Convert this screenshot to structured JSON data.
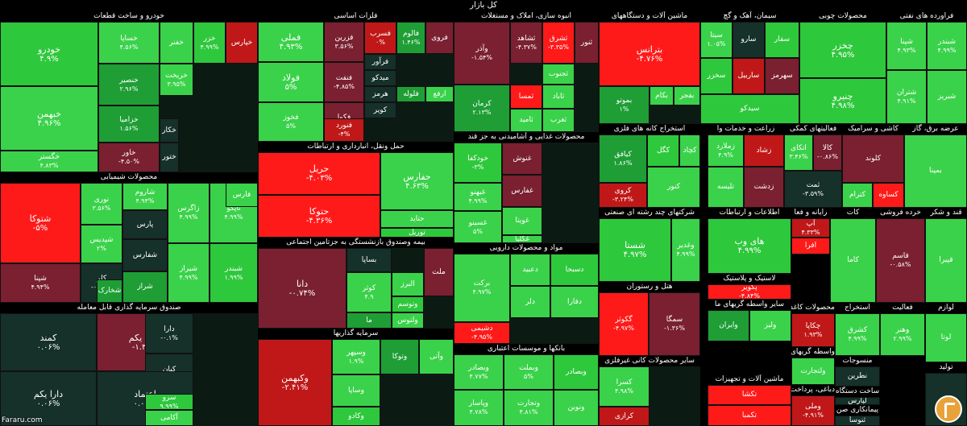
{
  "header": {
    "title": "کل بازار"
  },
  "watermark": "Fararu.com",
  "colors": {
    "strong_up": "#2ec83c",
    "up": "#3ad24a",
    "mild_up": "#1e9e35",
    "flat": "#16302a",
    "mild_down": "#7a2030",
    "down": "#c01818",
    "strong_down": "#ff1a1a",
    "text": "#ffffff",
    "background": "#000000"
  },
  "chart_data": {
    "type": "treemap",
    "title": "کل بازار",
    "sectors": [
      {
        "name": "خودرو و ساخت قطعات",
        "tiles": [
          {
            "symbol": "خودرو",
            "change": "۴.۹%"
          },
          {
            "symbol": "خساپا",
            "change": "۴.۵۶%"
          },
          {
            "symbol": "خبهمن",
            "change": "۴.۹۶%"
          },
          {
            "symbol": "خنصیر",
            "change": "۲.۹۶%"
          },
          {
            "symbol": "خزامیا",
            "change": "۱.۵۶%"
          },
          {
            "symbol": "خگستر",
            "change": "۴.۸۳%"
          },
          {
            "symbol": "خاور",
            "change": "-۴.۵۰%"
          },
          {
            "symbol": "خریخت",
            "change": "۳.۹۵%"
          },
          {
            "symbol": "خکار"
          },
          {
            "symbol": "ختور"
          },
          {
            "symbol": "خزر",
            "change": "۴.۹۹%"
          },
          {
            "symbol": "خپارس"
          },
          {
            "symbol": "خفنر"
          }
        ]
      },
      {
        "name": "محصولات شیمیایی",
        "tiles": [
          {
            "symbol": "شتوکا",
            "change": "-۵%"
          },
          {
            "symbol": "کلر",
            "change": "-۰.۳۳%"
          },
          {
            "symbol": "شپنا",
            "change": "۴.۹۴%"
          },
          {
            "symbol": "نوری",
            "change": "۳.۵۶%"
          },
          {
            "symbol": "شپدیس",
            "change": "۲%"
          },
          {
            "symbol": "شاروم",
            "change": "۴.۹۴%"
          },
          {
            "symbol": "پارس"
          },
          {
            "symbol": "شفارس"
          },
          {
            "symbol": "شراز"
          },
          {
            "symbol": "زاگرس",
            "change": "۴.۹۹%"
          },
          {
            "symbol": "شیراز",
            "change": "۴.۹۹%"
          },
          {
            "symbol": "تاپکو",
            "change": "۴.۹۹%"
          },
          {
            "symbol": "شبندر",
            "change": "۱.۹۹%"
          },
          {
            "symbol": "فارس"
          },
          {
            "symbol": "شخارک"
          }
        ]
      },
      {
        "name": "صندوق سرمایه گذاری قابل معامله",
        "tiles": [
          {
            "symbol": "کمند",
            "change": "۰.۰۶%"
          },
          {
            "symbol": "امین یکم",
            "change": "-۱.۳۵%"
          },
          {
            "symbol": "دارا",
            "change": "-۰.۱%"
          },
          {
            "symbol": "کیان",
            "change": "۰.۰۶%"
          },
          {
            "symbol": "اعتماد",
            "change": "۰.۰۳%"
          },
          {
            "symbol": "دارا یکم",
            "change": "۰.۰۶%"
          },
          {
            "symbol": "سرو",
            "change": "۹.۹۹%"
          },
          {
            "symbol": "آکامی"
          }
        ]
      },
      {
        "name": "فلزات اساسی",
        "tiles": [
          {
            "symbol": "فملی",
            "change": "۴.۹۳%"
          },
          {
            "symbol": "فولاد",
            "change": "۵%"
          },
          {
            "symbol": "فخوز",
            "change": "۵%"
          },
          {
            "symbol": "فزرین",
            "change": "۳.۵۶%"
          },
          {
            "symbol": "فنفت",
            "change": "-۴.۸۵%"
          },
          {
            "symbol": "فکوا",
            "change": "-۱.۴۶%"
          },
          {
            "symbol": "فنورد",
            "change": "-۴%"
          },
          {
            "symbol": "فسرب",
            "change": "۰%"
          },
          {
            "symbol": "فالوم",
            "change": "۱.۴۶%"
          },
          {
            "symbol": "فروی"
          },
          {
            "symbol": "فرآور"
          },
          {
            "symbol": "میدکو"
          },
          {
            "symbol": "هرمز"
          },
          {
            "symbol": "کویر"
          },
          {
            "symbol": "فلوله"
          },
          {
            "symbol": "ارفع"
          }
        ]
      },
      {
        "name": "حمل ونقل، انبارداری و ارتباطات",
        "tiles": [
          {
            "symbol": "حریل",
            "change": "-۴.۰۳%"
          },
          {
            "symbol": "حتوکا",
            "change": "-۴.۳۶%"
          },
          {
            "symbol": "حفارس",
            "change": "۴.۶۳%"
          },
          {
            "symbol": "حتاید"
          },
          {
            "symbol": "توریل"
          }
        ]
      },
      {
        "name": "بیمه وصندوق بازنشستگی به جزتامین اجتماعی",
        "tiles": [
          {
            "symbol": "دانا",
            "change": "-۰.۷۴%"
          },
          {
            "symbol": "کوثر",
            "change": "۴.۹"
          },
          {
            "symbol": "البرز"
          },
          {
            "symbol": "ملت"
          },
          {
            "symbol": "وتوسم"
          },
          {
            "symbol": "ولتوس"
          },
          {
            "symbol": "ما"
          },
          {
            "symbol": "بساپا"
          }
        ]
      },
      {
        "name": "سرمایه گذاریها",
        "tiles": [
          {
            "symbol": "وکبهمن",
            "change": "-۲.۴۱%"
          },
          {
            "symbol": "وسپهر",
            "change": "۱.۹%"
          },
          {
            "symbol": "وساپا"
          },
          {
            "symbol": "وتوکا"
          },
          {
            "symbol": "وکادو"
          },
          {
            "symbol": "وآتی"
          }
        ]
      },
      {
        "name": "انبوه سازی، املاک و مستغلات",
        "tiles": [
          {
            "symbol": "وآذر",
            "change": "-۱.۵۴%"
          },
          {
            "symbol": "کرمان",
            "change": "۲.۱۳%"
          },
          {
            "symbol": "ثشاهد",
            "change": "-۴.۳۷%"
          },
          {
            "symbol": "ثشرق",
            "change": "-۳.۳۵%"
          },
          {
            "symbol": "ثنور"
          },
          {
            "symbol": "ثجنوب"
          },
          {
            "symbol": "ثمسا"
          },
          {
            "symbol": "ثاباد"
          },
          {
            "symbol": "ثامید"
          },
          {
            "symbol": "ثغرب"
          }
        ]
      },
      {
        "name": "محصولات غذایی و آشامیدنی به جز قند",
        "tiles": [
          {
            "symbol": "خودکفا",
            "change": "-۳%"
          },
          {
            "symbol": "غبهنو",
            "change": "۴.۹۹%"
          },
          {
            "symbol": "غسینو",
            "change": "۵%"
          },
          {
            "symbol": "غنوش"
          },
          {
            "symbol": "غفارس"
          },
          {
            "symbol": "غویتا"
          },
          {
            "symbol": "غگلپا"
          }
        ]
      },
      {
        "name": "مواد و محصولات دارویی",
        "tiles": [
          {
            "symbol": "برکت",
            "change": "۴.۹۷%"
          },
          {
            "symbol": "دشیمی",
            "change": "-۴.۹۵%"
          },
          {
            "symbol": "دعبید"
          },
          {
            "symbol": "دسبحا"
          },
          {
            "symbol": "دلر"
          },
          {
            "symbol": "دفارا"
          }
        ]
      },
      {
        "name": "بانکها و موسسات اعتباری",
        "tiles": [
          {
            "symbol": "وبصادر",
            "change": "۴.۷۷%"
          },
          {
            "symbol": "وبملت",
            "change": "۵%"
          },
          {
            "symbol": "وپاسار",
            "change": "۴.۷۸%"
          },
          {
            "symbol": "وتجارت",
            "change": "۴.۸۱%"
          },
          {
            "symbol": "وبصادر"
          },
          {
            "symbol": "ونوین"
          }
        ]
      },
      {
        "name": "ماشین آلات و دستگاههای",
        "tiles": [
          {
            "symbol": "بترانس",
            "change": "-۴.۷۶%"
          },
          {
            "symbol": "بموتو",
            "change": "۱%"
          },
          {
            "symbol": "بکام"
          },
          {
            "symbol": "بفجر"
          }
        ]
      },
      {
        "name": "استخراج کانه های فلزی",
        "tiles": [
          {
            "symbol": "کیافق",
            "change": "۱.۸۶%"
          },
          {
            "symbol": "کروی",
            "change": "-۳.۲۴%"
          },
          {
            "symbol": "کگل"
          },
          {
            "symbol": "کچاد"
          },
          {
            "symbol": "کنور"
          }
        ]
      },
      {
        "name": "شرکتهای چند رشته ای صنعتی",
        "tiles": [
          {
            "symbol": "شستا",
            "change": "۴.۹۷%"
          },
          {
            "symbol": "وغدیر",
            "change": "۴.۹۹%"
          }
        ]
      },
      {
        "name": "هتل و رستوران",
        "tiles": [
          {
            "symbol": "گکوثر",
            "change": "-۴.۹۷%"
          },
          {
            "symbol": "سمگا",
            "change": "-۱.۳۶%"
          }
        ]
      },
      {
        "name": "سایر محصولات کانی غیرفلزی",
        "tiles": [
          {
            "symbol": "کسرا",
            "change": "۴.۹۸%"
          },
          {
            "symbol": "کرازی"
          }
        ]
      },
      {
        "name": "سیمان، آهک و گچ",
        "tiles": [
          {
            "symbol": "سیتا",
            "change": "۱.۰۵%"
          },
          {
            "symbol": "سارو"
          },
          {
            "symbol": "سفار"
          },
          {
            "symbol": "سخزر"
          },
          {
            "symbol": "ساربیل"
          },
          {
            "symbol": "سهرمز"
          },
          {
            "symbol": "سیدکو"
          }
        ]
      },
      {
        "name": "زراعت و خدمات وا",
        "tiles": [
          {
            "symbol": "زملارد",
            "change": "۴.۹%"
          },
          {
            "symbol": "زشاد"
          },
          {
            "symbol": "زدشت"
          },
          {
            "symbol": "تلیسه"
          }
        ]
      },
      {
        "name": "فعالیتهای کمکی",
        "tiles": [
          {
            "symbol": "اتکای",
            "change": "۳.۴۶%"
          },
          {
            "symbol": "کالا",
            "change": "-۰.۸۶%"
          },
          {
            "symbol": "ثمت",
            "change": "-۳.۵۹%"
          }
        ]
      },
      {
        "name": "کاشی و سرامیک",
        "tiles": [
          {
            "symbol": "کلوند"
          },
          {
            "symbol": "کترام"
          },
          {
            "symbol": "کساوه"
          }
        ]
      },
      {
        "name": "اطلاعات و ارتباطات",
        "tiles": [
          {
            "symbol": "های وب",
            "change": "۴.۹۹%"
          }
        ]
      },
      {
        "name": "لاستیک و پلاستیک",
        "tiles": [
          {
            "symbol": "پکویر",
            "change": "-۴.۸۴%"
          }
        ]
      },
      {
        "name": "سایر واسطه گریهای ما",
        "tiles": [
          {
            "symbol": "وایران"
          },
          {
            "symbol": "ولیز"
          }
        ]
      },
      {
        "name": "ماشین آلات و تجهیزات",
        "tiles": [
          {
            "symbol": "تکشا"
          },
          {
            "symbol": "تکمبا"
          }
        ]
      },
      {
        "name": "رایانه و فعا",
        "tiles": [
          {
            "symbol": "آپ",
            "change": "۴.۳۳%"
          },
          {
            "symbol": "افرا"
          }
        ]
      },
      {
        "name": "خرده فروشی",
        "tiles": [
          {
            "symbol": "قاسم",
            "change": "-۰.۵۸%"
          }
        ]
      },
      {
        "name": "محصولات کاغذی",
        "tiles": [
          {
            "symbol": "چکاپا",
            "change": "۱.۹۳%"
          },
          {
            "symbol": "چکارن"
          }
        ]
      },
      {
        "name": "واسطه گریهای م",
        "tiles": [
          {
            "symbol": "ولتجارت"
          }
        ]
      },
      {
        "name": "دباغی، پرداخت",
        "tiles": [
          {
            "symbol": "وملی",
            "change": "-۴.۹۱%"
          }
        ]
      },
      {
        "name": "استخراج",
        "tiles": [
          {
            "symbol": "کشرق",
            "change": "۴.۹۹%"
          },
          {
            "symbol": "کطبس"
          }
        ]
      },
      {
        "name": "فعالیت",
        "tiles": [
          {
            "symbol": "وهنر",
            "change": "۲.۹۹%"
          }
        ]
      },
      {
        "name": "منسوجات",
        "tiles": [
          {
            "symbol": "نطرین"
          },
          {
            "symbol": "نبروج"
          }
        ]
      },
      {
        "name": "ساخت دستگاه",
        "tiles": [
          {
            "symbol": "لپارس"
          },
          {
            "symbol": "لابسا"
          }
        ]
      },
      {
        "name": "پیمانکاری صن",
        "tiles": [
          {
            "symbol": "ثنوسا"
          }
        ]
      },
      {
        "name": "محصولات چوبی",
        "tiles": [
          {
            "symbol": "چخزر",
            "change": "۴.۹۵%"
          },
          {
            "symbol": "چنیرو",
            "change": "۴.۹۸%"
          }
        ]
      },
      {
        "name": "فراورده های نفتی",
        "tiles": [
          {
            "symbol": "شپنا",
            "change": "۴.۹۳%"
          },
          {
            "symbol": "شبندر",
            "change": "۴.۹۹%"
          },
          {
            "symbol": "شتران",
            "change": "۴.۹۱%"
          },
          {
            "symbol": "شبریز"
          }
        ]
      },
      {
        "name": "قند و شکر",
        "tiles": [
          {
            "symbol": "قپیرا"
          }
        ]
      },
      {
        "name": "عرضه برق، گاز",
        "tiles": [
          {
            "symbol": "بمپنا"
          }
        ]
      },
      {
        "name": "کات",
        "tiles": [
          {
            "symbol": "کاما"
          }
        ]
      },
      {
        "name": "لوازم",
        "tiles": [
          {
            "symbol": "لوتا"
          }
        ]
      },
      {
        "name": "تولید",
        "tiles": [
          {
            "symbol": "تولید"
          }
        ]
      }
    ]
  }
}
